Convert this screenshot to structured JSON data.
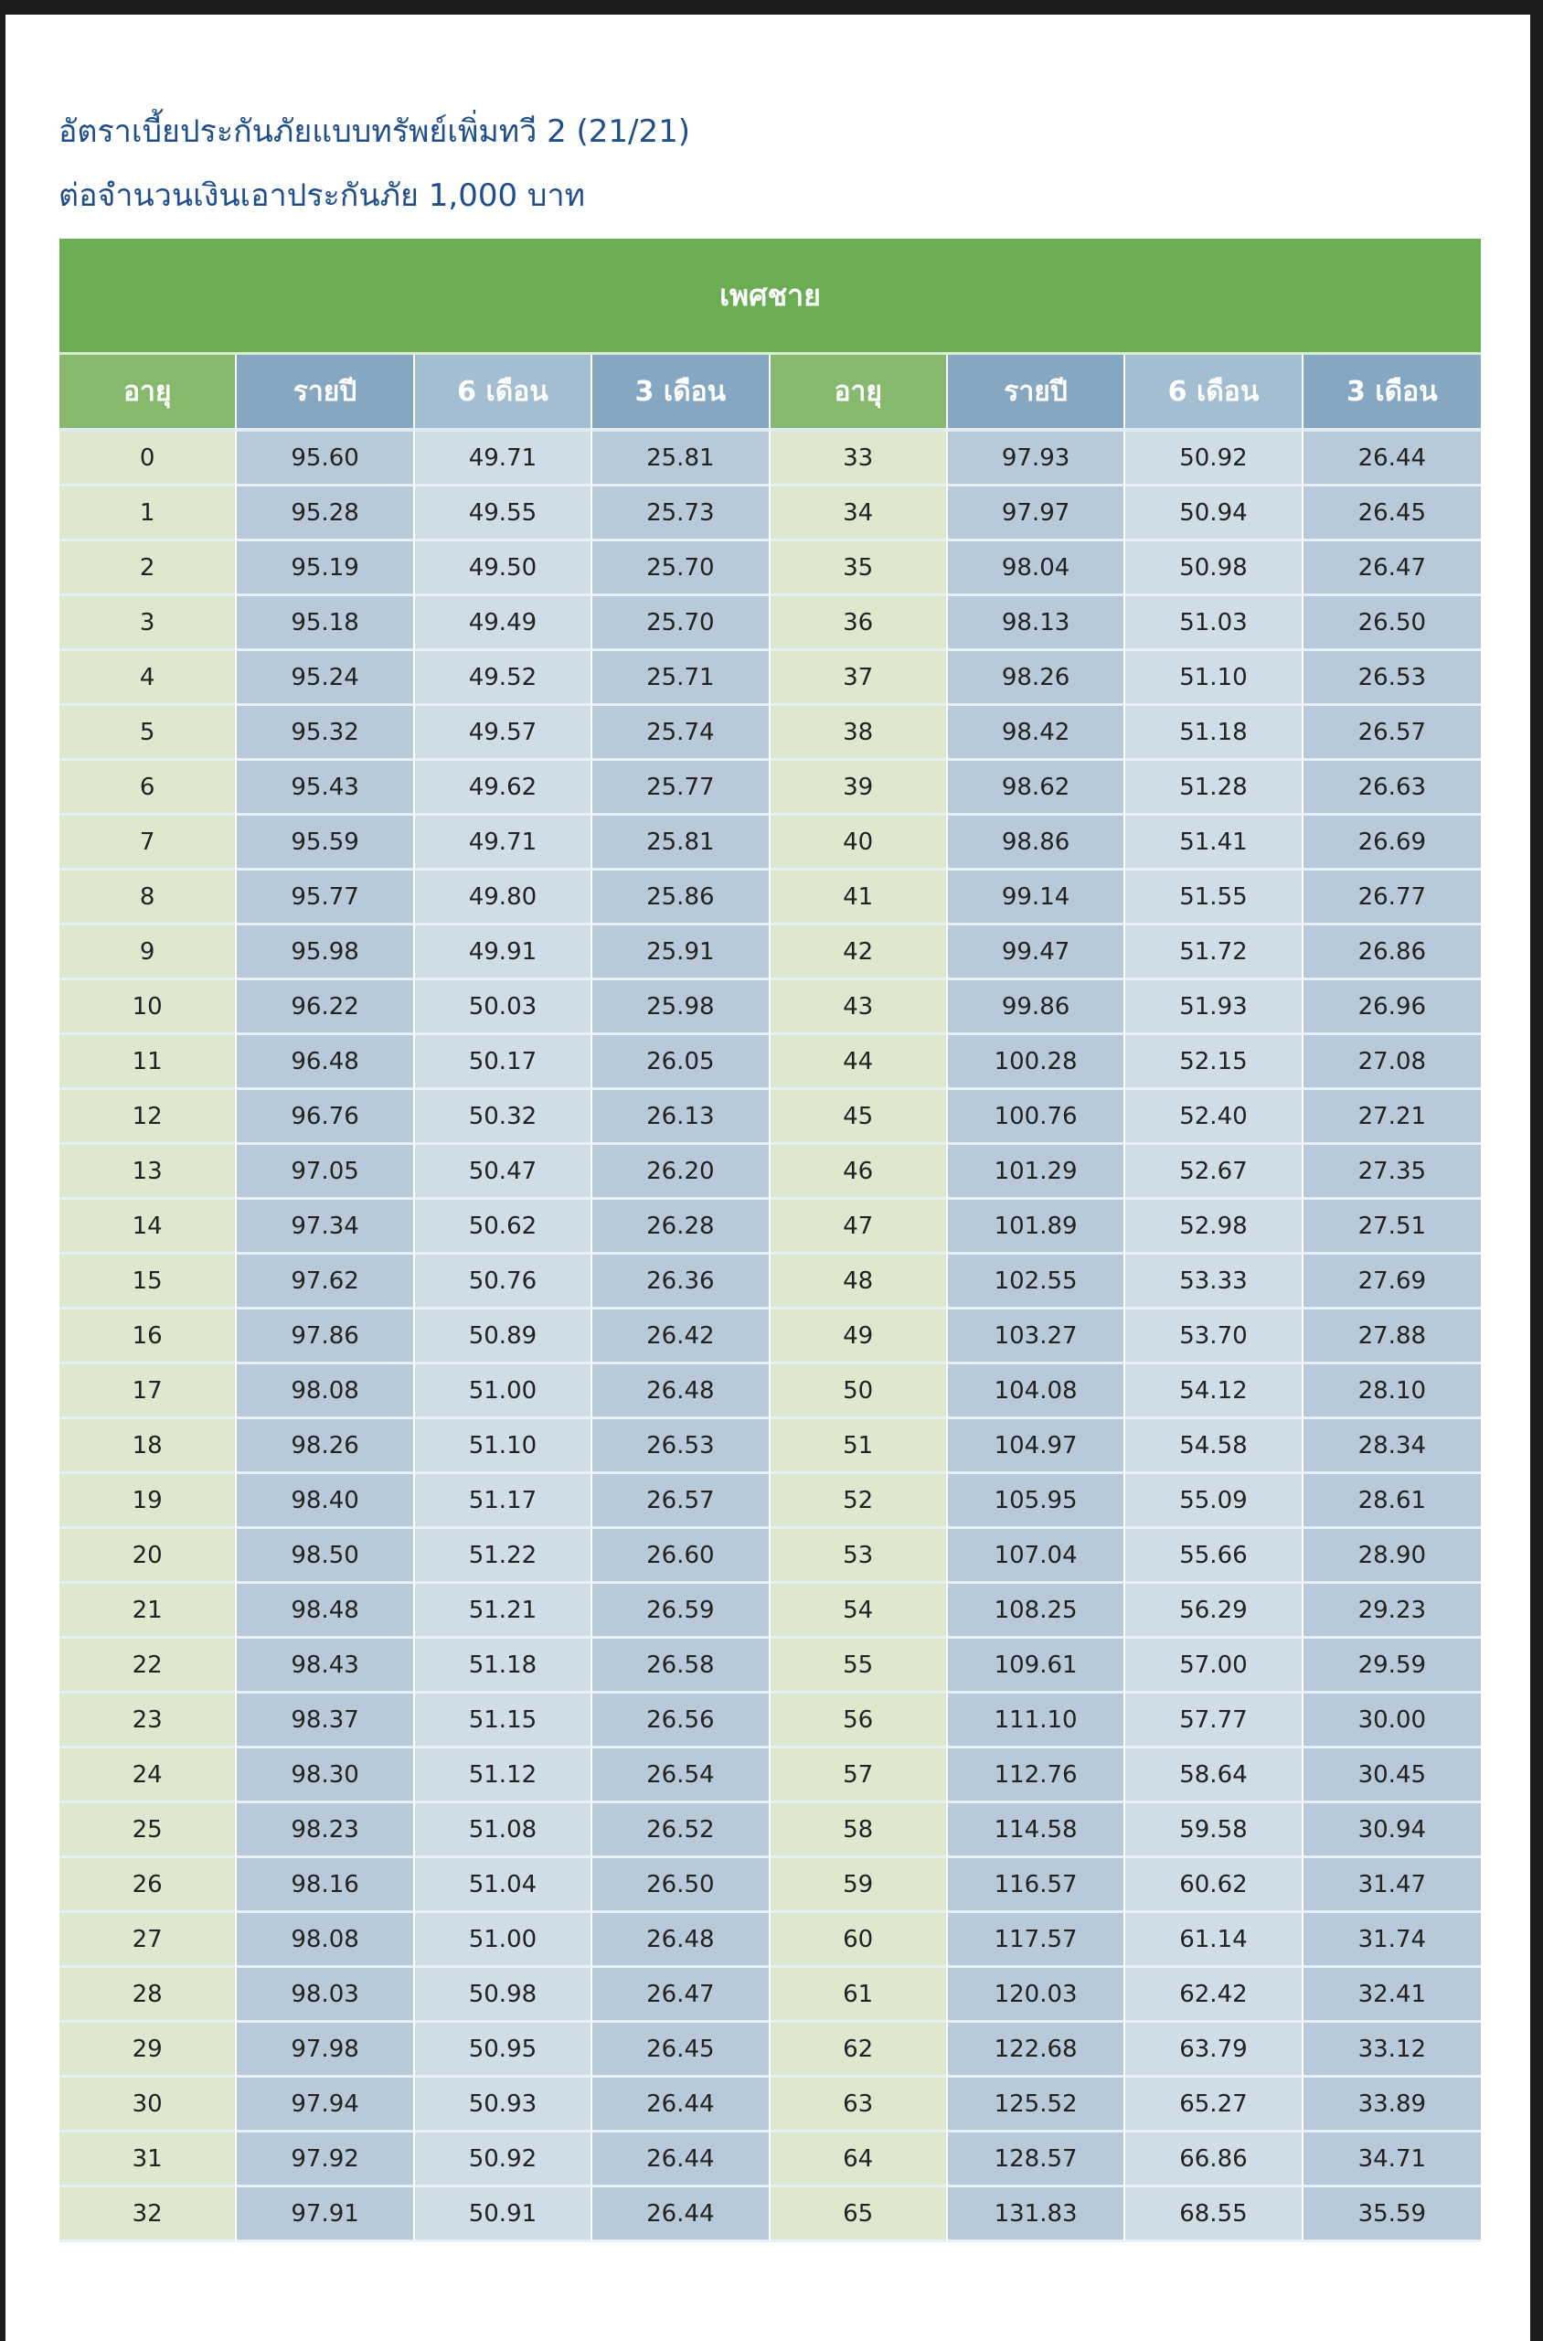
{
  "title": {
    "line1": "อัตราเบี้ยประกันภัยแบบทรัพย์เพิ่มทวี 2 (21/21)",
    "line2": "ต่อจำนวนเงินเอาประกันภัย 1,000 บาท"
  },
  "table": {
    "group_header": "เพศชาย",
    "columns": [
      "อายุ",
      "รายปี",
      "6 เดือน",
      "3 เดือน",
      "อายุ",
      "รายปี",
      "6 เดือน",
      "3 เดือน"
    ],
    "colors": {
      "group_header": "#6aad55",
      "age_header": "#86b96d",
      "rate_header": "#86a7c2",
      "age_cell": "#dde8cf",
      "rate_cell": "#b8cad9"
    },
    "rows": [
      [
        "0",
        "95.60",
        "49.71",
        "25.81",
        "33",
        "97.93",
        "50.92",
        "26.44"
      ],
      [
        "1",
        "95.28",
        "49.55",
        "25.73",
        "34",
        "97.97",
        "50.94",
        "26.45"
      ],
      [
        "2",
        "95.19",
        "49.50",
        "25.70",
        "35",
        "98.04",
        "50.98",
        "26.47"
      ],
      [
        "3",
        "95.18",
        "49.49",
        "25.70",
        "36",
        "98.13",
        "51.03",
        "26.50"
      ],
      [
        "4",
        "95.24",
        "49.52",
        "25.71",
        "37",
        "98.26",
        "51.10",
        "26.53"
      ],
      [
        "5",
        "95.32",
        "49.57",
        "25.74",
        "38",
        "98.42",
        "51.18",
        "26.57"
      ],
      [
        "6",
        "95.43",
        "49.62",
        "25.77",
        "39",
        "98.62",
        "51.28",
        "26.63"
      ],
      [
        "7",
        "95.59",
        "49.71",
        "25.81",
        "40",
        "98.86",
        "51.41",
        "26.69"
      ],
      [
        "8",
        "95.77",
        "49.80",
        "25.86",
        "41",
        "99.14",
        "51.55",
        "26.77"
      ],
      [
        "9",
        "95.98",
        "49.91",
        "25.91",
        "42",
        "99.47",
        "51.72",
        "26.86"
      ],
      [
        "10",
        "96.22",
        "50.03",
        "25.98",
        "43",
        "99.86",
        "51.93",
        "26.96"
      ],
      [
        "11",
        "96.48",
        "50.17",
        "26.05",
        "44",
        "100.28",
        "52.15",
        "27.08"
      ],
      [
        "12",
        "96.76",
        "50.32",
        "26.13",
        "45",
        "100.76",
        "52.40",
        "27.21"
      ],
      [
        "13",
        "97.05",
        "50.47",
        "26.20",
        "46",
        "101.29",
        "52.67",
        "27.35"
      ],
      [
        "14",
        "97.34",
        "50.62",
        "26.28",
        "47",
        "101.89",
        "52.98",
        "27.51"
      ],
      [
        "15",
        "97.62",
        "50.76",
        "26.36",
        "48",
        "102.55",
        "53.33",
        "27.69"
      ],
      [
        "16",
        "97.86",
        "50.89",
        "26.42",
        "49",
        "103.27",
        "53.70",
        "27.88"
      ],
      [
        "17",
        "98.08",
        "51.00",
        "26.48",
        "50",
        "104.08",
        "54.12",
        "28.10"
      ],
      [
        "18",
        "98.26",
        "51.10",
        "26.53",
        "51",
        "104.97",
        "54.58",
        "28.34"
      ],
      [
        "19",
        "98.40",
        "51.17",
        "26.57",
        "52",
        "105.95",
        "55.09",
        "28.61"
      ],
      [
        "20",
        "98.50",
        "51.22",
        "26.60",
        "53",
        "107.04",
        "55.66",
        "28.90"
      ],
      [
        "21",
        "98.48",
        "51.21",
        "26.59",
        "54",
        "108.25",
        "56.29",
        "29.23"
      ],
      [
        "22",
        "98.43",
        "51.18",
        "26.58",
        "55",
        "109.61",
        "57.00",
        "29.59"
      ],
      [
        "23",
        "98.37",
        "51.15",
        "26.56",
        "56",
        "111.10",
        "57.77",
        "30.00"
      ],
      [
        "24",
        "98.30",
        "51.12",
        "26.54",
        "57",
        "112.76",
        "58.64",
        "30.45"
      ],
      [
        "25",
        "98.23",
        "51.08",
        "26.52",
        "58",
        "114.58",
        "59.58",
        "30.94"
      ],
      [
        "26",
        "98.16",
        "51.04",
        "26.50",
        "59",
        "116.57",
        "60.62",
        "31.47"
      ],
      [
        "27",
        "98.08",
        "51.00",
        "26.48",
        "60",
        "117.57",
        "61.14",
        "31.74"
      ],
      [
        "28",
        "98.03",
        "50.98",
        "26.47",
        "61",
        "120.03",
        "62.42",
        "32.41"
      ],
      [
        "29",
        "97.98",
        "50.95",
        "26.45",
        "62",
        "122.68",
        "63.79",
        "33.12"
      ],
      [
        "30",
        "97.94",
        "50.93",
        "26.44",
        "63",
        "125.52",
        "65.27",
        "33.89"
      ],
      [
        "31",
        "97.92",
        "50.92",
        "26.44",
        "64",
        "128.57",
        "66.86",
        "34.71"
      ],
      [
        "32",
        "97.91",
        "50.91",
        "26.44",
        "65",
        "131.83",
        "68.55",
        "35.59"
      ]
    ]
  }
}
